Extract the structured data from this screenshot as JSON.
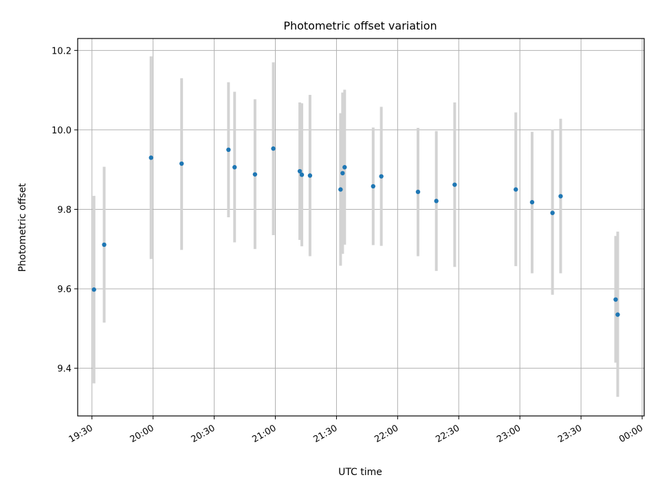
{
  "chart_data": {
    "type": "scatter",
    "title": "Photometric offset variation",
    "xlabel": "UTC time",
    "ylabel": "Photometric offset",
    "x_unit": "HH:MM UTC",
    "xlim": [
      "19:23",
      "00:01"
    ],
    "ylim": [
      9.28,
      10.23
    ],
    "x_tick_labels": [
      "19:30",
      "20:00",
      "20:30",
      "21:00",
      "21:30",
      "22:00",
      "22:30",
      "23:00",
      "23:30",
      "00:00"
    ],
    "y_tick_values": [
      9.4,
      9.6,
      9.8,
      10.0,
      10.2
    ],
    "y_tick_labels": [
      "9.4",
      "9.6",
      "9.8",
      "10.0",
      "10.2"
    ],
    "grid": true,
    "marker_color": "#1f77b4",
    "errorbar_color": "#d3d3d3",
    "points": [
      {
        "x": "19:31",
        "y": 9.598,
        "ylow": 9.362,
        "yhigh": 9.834
      },
      {
        "x": "19:36",
        "y": 9.711,
        "ylow": 9.515,
        "yhigh": 9.907
      },
      {
        "x": "19:59",
        "y": 9.93,
        "ylow": 9.675,
        "yhigh": 10.185
      },
      {
        "x": "20:14",
        "y": 9.915,
        "ylow": 9.698,
        "yhigh": 10.13
      },
      {
        "x": "20:37",
        "y": 9.95,
        "ylow": 9.78,
        "yhigh": 10.12
      },
      {
        "x": "20:40",
        "y": 9.906,
        "ylow": 9.717,
        "yhigh": 10.096
      },
      {
        "x": "20:50",
        "y": 9.888,
        "ylow": 9.7,
        "yhigh": 10.077
      },
      {
        "x": "20:59",
        "y": 9.953,
        "ylow": 9.735,
        "yhigh": 10.17
      },
      {
        "x": "21:12",
        "y": 9.896,
        "ylow": 9.723,
        "yhigh": 10.069
      },
      {
        "x": "21:13",
        "y": 9.887,
        "ylow": 9.707,
        "yhigh": 10.067
      },
      {
        "x": "21:17",
        "y": 9.885,
        "ylow": 9.682,
        "yhigh": 10.088
      },
      {
        "x": "21:32",
        "y": 9.85,
        "ylow": 9.658,
        "yhigh": 10.042
      },
      {
        "x": "21:33",
        "y": 9.891,
        "ylow": 9.688,
        "yhigh": 10.094
      },
      {
        "x": "21:34",
        "y": 9.906,
        "ylow": 9.711,
        "yhigh": 10.101
      },
      {
        "x": "21:48",
        "y": 9.858,
        "ylow": 9.71,
        "yhigh": 10.006
      },
      {
        "x": "21:52",
        "y": 9.883,
        "ylow": 9.708,
        "yhigh": 10.058
      },
      {
        "x": "22:10",
        "y": 9.844,
        "ylow": 9.682,
        "yhigh": 10.005
      },
      {
        "x": "22:19",
        "y": 9.821,
        "ylow": 9.645,
        "yhigh": 9.997
      },
      {
        "x": "22:28",
        "y": 9.862,
        "ylow": 9.655,
        "yhigh": 10.069
      },
      {
        "x": "22:58",
        "y": 9.85,
        "ylow": 9.657,
        "yhigh": 10.044
      },
      {
        "x": "23:06",
        "y": 9.818,
        "ylow": 9.639,
        "yhigh": 9.995
      },
      {
        "x": "23:16",
        "y": 9.791,
        "ylow": 9.585,
        "yhigh": 10.001
      },
      {
        "x": "23:20",
        "y": 9.833,
        "ylow": 9.639,
        "yhigh": 10.028
      },
      {
        "x": "23:47",
        "y": 9.573,
        "ylow": 9.414,
        "yhigh": 9.733
      },
      {
        "x": "23:48",
        "y": 9.535,
        "ylow": 9.328,
        "yhigh": 9.744
      }
    ]
  }
}
